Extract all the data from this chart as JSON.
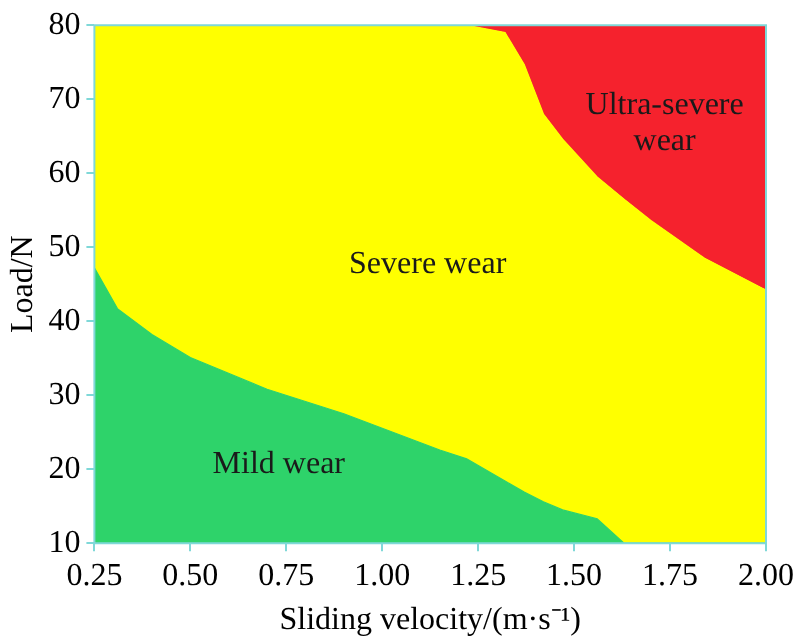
{
  "chart_data": {
    "type": "area",
    "xlabel": "Sliding velocity/(m·s⁻¹)",
    "ylabel": "Load/N",
    "x": [
      0.25,
      0.31,
      0.4,
      0.5,
      0.7,
      0.9,
      1.15,
      1.22,
      1.32,
      1.37,
      1.42,
      1.47,
      1.56,
      1.63,
      1.7,
      1.84,
      2.0
    ],
    "series": [
      {
        "name": "Mild wear",
        "color": "#2ed36a",
        "values": [
          47.2,
          41.7,
          38.2,
          35.1,
          30.8,
          27.5,
          22.6,
          21.4,
          18.4,
          16.9,
          15.6,
          14.5,
          13.3,
          10,
          10,
          10,
          10
        ]
      },
      {
        "name": "Severe wear",
        "color": "#ffff00",
        "values": [
          80,
          80,
          80,
          80,
          80,
          80,
          80,
          80,
          79,
          74.7,
          68,
          64.6,
          59.5,
          56.5,
          53.6,
          48.5,
          44.2
        ]
      },
      {
        "name": "Ultra-severe wear",
        "color": "#f5222d",
        "values": [
          80,
          80,
          80,
          80,
          80,
          80,
          80,
          80,
          80,
          80,
          80,
          80,
          80,
          80,
          80,
          80,
          80
        ]
      }
    ],
    "xlim": [
      0.25,
      2.0
    ],
    "xticks": [
      0.25,
      {
        "value": 0.5,
        "label": "0.50"
      },
      0.75,
      {
        "value": 1,
        "label": "1.00"
      },
      1.25,
      {
        "value": 1.5,
        "label": "1.50"
      },
      1.75,
      {
        "value": 2,
        "label": "2.00"
      }
    ],
    "ylim": [
      10,
      80
    ],
    "yticks": [
      10,
      20,
      30,
      40,
      50,
      60,
      70,
      80
    ],
    "grid": false,
    "legend": false
  }
}
